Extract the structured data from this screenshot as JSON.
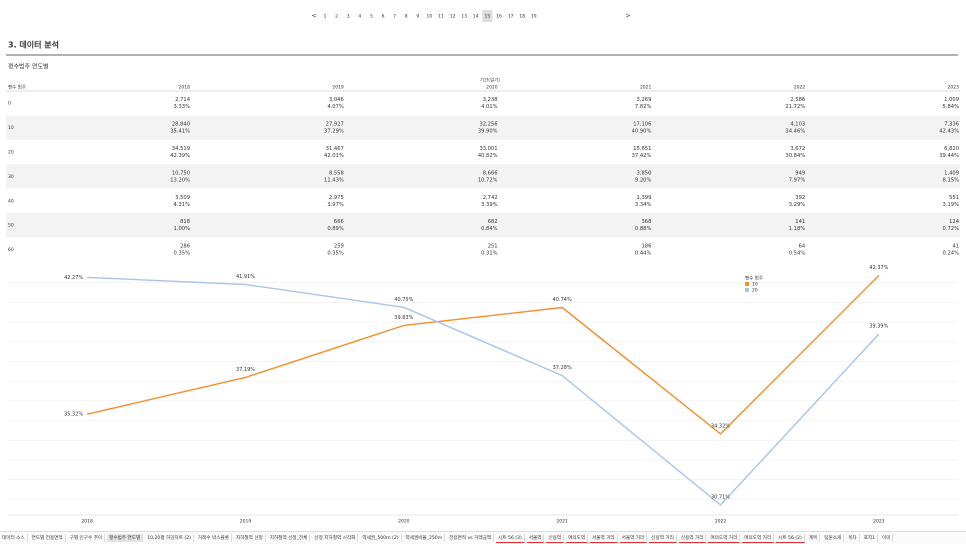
{
  "pagination": {
    "prev": "<",
    "pages": [
      "1",
      "2",
      "3",
      "4",
      "5",
      "6",
      "7",
      "8",
      "9",
      "10",
      "11",
      "12",
      "13",
      "14",
      "15",
      "16",
      "17",
      "18",
      "19"
    ],
    "current": 15,
    "next": ">"
  },
  "section_title": "3. 데이터 분석",
  "sheet_title": "평수범주 연도별",
  "table": {
    "column_group": "기간(일기)",
    "row_header": "평수 범주",
    "columns": [
      "2018",
      "2019",
      "2020",
      "2021",
      "2022",
      "2023"
    ],
    "rows": [
      {
        "label": "0",
        "cells": [
          [
            "2,714",
            "3.33%"
          ],
          [
            "3,046",
            "4.07%"
          ],
          [
            "3,238",
            "4.01%"
          ],
          [
            "3,269",
            "7.82%"
          ],
          [
            "2,586",
            "21.72%"
          ],
          [
            "1,009",
            "5.84%"
          ]
        ]
      },
      {
        "label": "10",
        "cells": [
          [
            "28,840",
            "35.41%"
          ],
          [
            "27,927",
            "37.29%"
          ],
          [
            "32,256",
            "39.90%"
          ],
          [
            "17,106",
            "40.90%"
          ],
          [
            "4,103",
            "34.46%"
          ],
          [
            "7,336",
            "42.43%"
          ]
        ]
      },
      {
        "label": "20",
        "cells": [
          [
            "34,519",
            "42.39%"
          ],
          [
            "31,467",
            "42.01%"
          ],
          [
            "33,001",
            "40.82%"
          ],
          [
            "15,651",
            "37.42%"
          ],
          [
            "3,672",
            "30.84%"
          ],
          [
            "6,820",
            "39.44%"
          ]
        ]
      },
      {
        "label": "30",
        "cells": [
          [
            "10,750",
            "13.20%"
          ],
          [
            "8,558",
            "11.43%"
          ],
          [
            "8,666",
            "10.72%"
          ],
          [
            "3,850",
            "9.20%"
          ],
          [
            "949",
            "7.97%"
          ],
          [
            "1,409",
            "8.15%"
          ]
        ]
      },
      {
        "label": "40",
        "cells": [
          [
            "3,509",
            "4.31%"
          ],
          [
            "2,975",
            "3.97%"
          ],
          [
            "2,742",
            "3.39%"
          ],
          [
            "1,399",
            "3.34%"
          ],
          [
            "392",
            "3.29%"
          ],
          [
            "551",
            "3.19%"
          ]
        ]
      },
      {
        "label": "50",
        "cells": [
          [
            "818",
            "1.00%"
          ],
          [
            "666",
            "0.89%"
          ],
          [
            "682",
            "0.84%"
          ],
          [
            "368",
            "0.88%"
          ],
          [
            "141",
            "1.18%"
          ],
          [
            "124",
            "0.72%"
          ]
        ]
      },
      {
        "label": "60",
        "cells": [
          [
            "286",
            "0.35%"
          ],
          [
            "259",
            "0.35%"
          ],
          [
            "251",
            "0.31%"
          ],
          [
            "186",
            "0.44%"
          ],
          [
            "64",
            "0.54%"
          ],
          [
            "41",
            "0.24%"
          ]
        ]
      }
    ]
  },
  "chart_data": {
    "type": "line",
    "categories": [
      "2018",
      "2019",
      "2020",
      "2021",
      "2022",
      "2023"
    ],
    "series": [
      {
        "name": "10",
        "color": "#f28e2b",
        "values": [
          35.32,
          37.19,
          39.83,
          40.74,
          34.32,
          42.37
        ],
        "value_labels": [
          "35.32%",
          "37.19%",
          "39.83%",
          "40.74%",
          "34.32%",
          "42.37%"
        ]
      },
      {
        "name": "20",
        "color": "#a9c4ea",
        "values": [
          42.27,
          41.91,
          40.75,
          37.28,
          30.71,
          39.39
        ],
        "value_labels": [
          "42.27%",
          "41.91%",
          "40.75%",
          "37.28%",
          "30.71%",
          "39.39%"
        ]
      }
    ],
    "legend_title": "평수 범주",
    "ylim": [
      30.2,
      42.9
    ],
    "yticks": [
      31,
      32,
      33,
      34,
      35,
      36,
      37,
      38,
      39,
      40,
      41,
      42
    ],
    "grid": true
  },
  "tabs": [
    "데이터 소스",
    "연도별 전용면적",
    "구별 인구수 추이",
    "평수범주 연도별",
    "10,20평 하강차트 (2)",
    "거래수 박스플롯",
    "지하철역 선정",
    "지하철역 선정_전체",
    "선정 지하철역 시각화",
    "역세권_500m (2)",
    "역세권비율_250m",
    "전용면적 vs 거래금액",
    "시트 56 (3)",
    "서울역",
    "신용역",
    "여의도역",
    "서울역 거리",
    "서울역 거리",
    "신용역 거리",
    "신용역 거리",
    "여의도역 거리",
    "여의도역 거리",
    "시트 56 (2)",
    "계목",
    "팀원소개",
    "목차",
    "표지1",
    "이미"
  ]
}
